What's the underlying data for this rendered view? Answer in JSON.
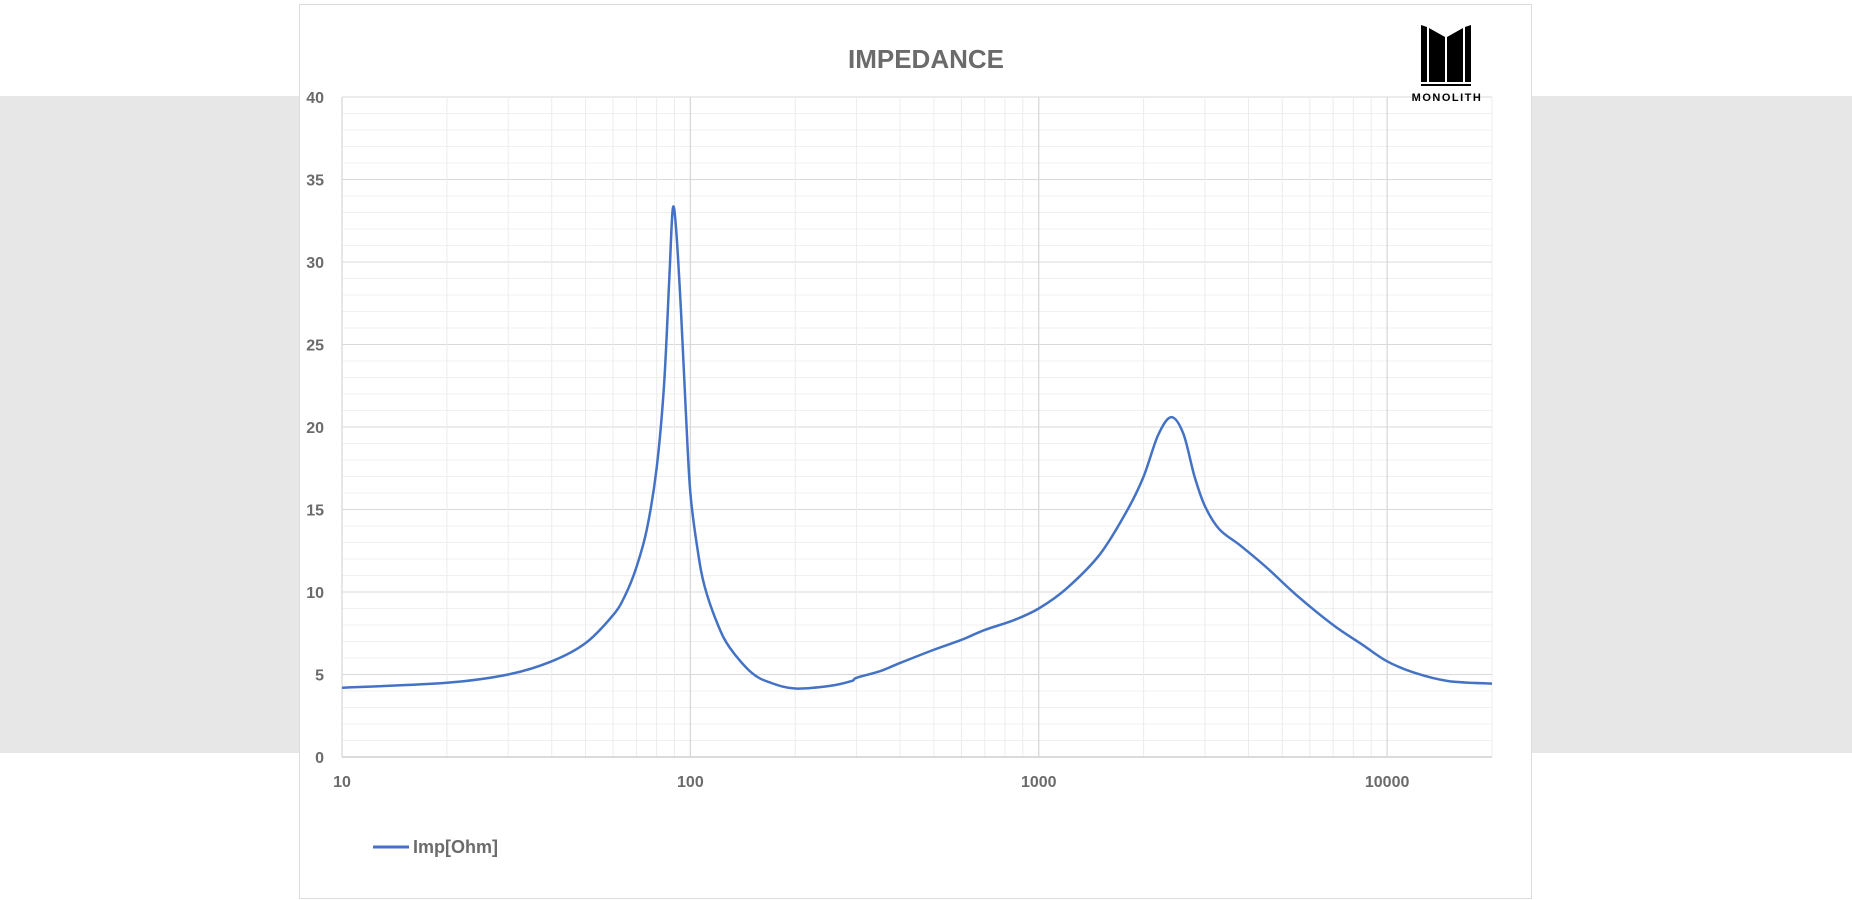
{
  "logo": {
    "text": "MONOLITH"
  },
  "chart_data": {
    "type": "line",
    "title": "IMPEDANCE",
    "xlabel": "",
    "ylabel": "",
    "xscale": "log",
    "xlim": [
      10,
      20000
    ],
    "ylim": [
      0,
      40
    ],
    "grid": true,
    "x_ticks": [
      "10",
      "100",
      "1000",
      "10000"
    ],
    "y_ticks": [
      "0",
      "5",
      "10",
      "15",
      "20",
      "25",
      "30",
      "35",
      "40"
    ],
    "legend_position": "bottom-left",
    "colors": {
      "series": "#4472c4"
    },
    "series": [
      {
        "name": "Imp[Ohm]",
        "x": [
          10,
          20,
          30,
          40,
          50,
          60,
          65,
          70,
          75,
          80,
          84,
          87,
          89,
          91,
          94,
          97,
          100,
          105,
          110,
          120,
          130,
          150,
          170,
          200,
          250,
          290,
          300,
          350,
          400,
          500,
          600,
          700,
          850,
          1000,
          1200,
          1500,
          1800,
          2000,
          2200,
          2400,
          2600,
          2800,
          3000,
          3300,
          3800,
          4500,
          5500,
          7000,
          8500,
          10000,
          12000,
          15000,
          20000
        ],
        "y": [
          4.2,
          4.5,
          5.0,
          5.8,
          6.9,
          8.6,
          9.8,
          11.5,
          13.8,
          17.5,
          22.5,
          29,
          33.2,
          32,
          27,
          21,
          16,
          12.5,
          10.3,
          8,
          6.6,
          5.1,
          4.5,
          4.15,
          4.3,
          4.6,
          4.8,
          5.2,
          5.7,
          6.5,
          7.1,
          7.7,
          8.3,
          9.0,
          10.2,
          12.3,
          15,
          17,
          19.5,
          20.6,
          19.6,
          17,
          15.2,
          13.8,
          12.8,
          11.5,
          9.8,
          8,
          6.8,
          5.8,
          5.1,
          4.6,
          4.45
        ]
      }
    ]
  }
}
